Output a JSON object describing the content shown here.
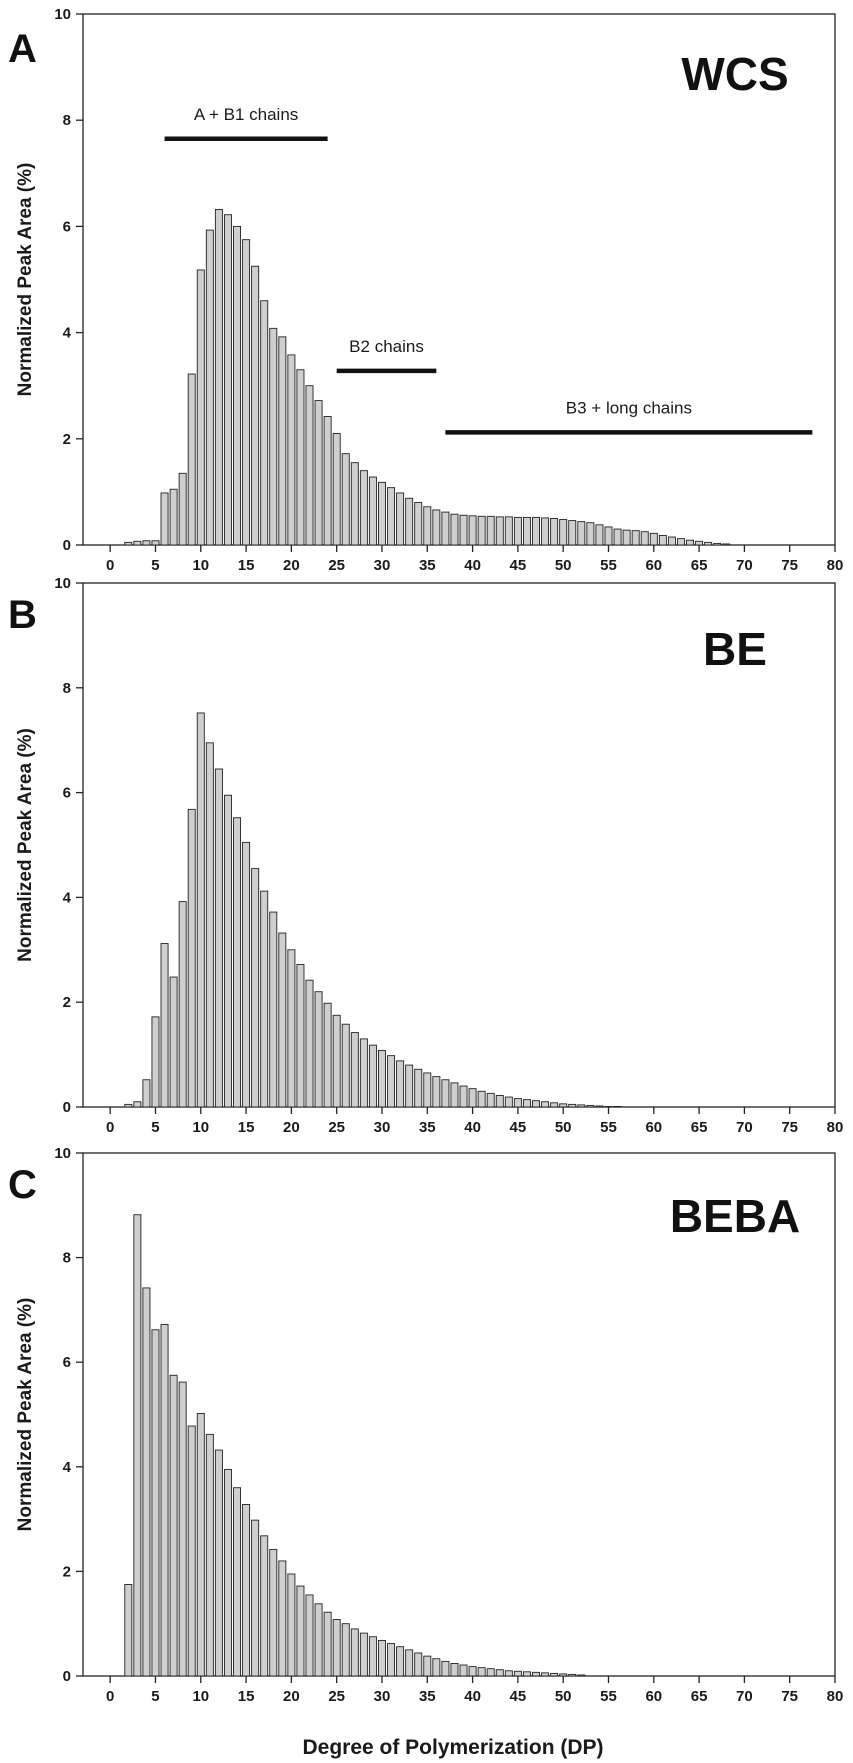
{
  "figure": {
    "xlabel": "Degree of Polymerization (DP)"
  },
  "colors": {
    "bar_fill": "#cfcfcf",
    "bar_stroke": "#222222",
    "axis": "#222222",
    "annotation_line": "#111111"
  },
  "chart_data": [
    {
      "type": "bar",
      "panel_letter": "A",
      "panel_name": "WCS",
      "ylabel": "Normalized Peak Area (%)",
      "xlim": [
        -3,
        80
      ],
      "ylim": [
        0,
        10
      ],
      "xticks": [
        0,
        5,
        10,
        15,
        20,
        25,
        30,
        35,
        40,
        45,
        50,
        55,
        60,
        65,
        70,
        75,
        80
      ],
      "yticks": [
        0,
        2,
        4,
        6,
        8,
        10
      ],
      "x": [
        2,
        3,
        4,
        5,
        6,
        7,
        8,
        9,
        10,
        11,
        12,
        13,
        14,
        15,
        16,
        17,
        18,
        19,
        20,
        21,
        22,
        23,
        24,
        25,
        26,
        27,
        28,
        29,
        30,
        31,
        32,
        33,
        34,
        35,
        36,
        37,
        38,
        39,
        40,
        41,
        42,
        43,
        44,
        45,
        46,
        47,
        48,
        49,
        50,
        51,
        52,
        53,
        54,
        55,
        56,
        57,
        58,
        59,
        60,
        61,
        62,
        63,
        64,
        65,
        66,
        67,
        68
      ],
      "values": [
        0.05,
        0.07,
        0.08,
        0.08,
        0.98,
        1.05,
        1.35,
        3.22,
        5.18,
        5.93,
        6.32,
        6.22,
        6.0,
        5.75,
        5.25,
        4.6,
        4.08,
        3.92,
        3.58,
        3.3,
        3.0,
        2.72,
        2.42,
        2.1,
        1.72,
        1.55,
        1.4,
        1.28,
        1.18,
        1.08,
        0.98,
        0.88,
        0.8,
        0.72,
        0.66,
        0.62,
        0.58,
        0.56,
        0.55,
        0.54,
        0.54,
        0.53,
        0.53,
        0.52,
        0.52,
        0.52,
        0.51,
        0.5,
        0.48,
        0.46,
        0.44,
        0.42,
        0.38,
        0.34,
        0.3,
        0.28,
        0.27,
        0.25,
        0.22,
        0.18,
        0.15,
        0.12,
        0.09,
        0.07,
        0.05,
        0.03,
        0.02
      ],
      "annotations": [
        {
          "label": "A + B1 chains",
          "x_start": 6,
          "x_end": 24,
          "y": 7.65
        },
        {
          "label": "B2 chains",
          "x_start": 25,
          "x_end": 36,
          "y": 3.28
        },
        {
          "label": "B3 + long chains",
          "x_start": 37,
          "x_end": 77.5,
          "y": 2.12
        }
      ]
    },
    {
      "type": "bar",
      "panel_letter": "B",
      "panel_name": "BE",
      "ylabel": "Normalized Peak Area (%)",
      "xlim": [
        -3,
        80
      ],
      "ylim": [
        0,
        10
      ],
      "xticks": [
        0,
        5,
        10,
        15,
        20,
        25,
        30,
        35,
        40,
        45,
        50,
        55,
        60,
        65,
        70,
        75,
        80
      ],
      "yticks": [
        0,
        2,
        4,
        6,
        8,
        10
      ],
      "x": [
        2,
        3,
        4,
        5,
        6,
        7,
        8,
        9,
        10,
        11,
        12,
        13,
        14,
        15,
        16,
        17,
        18,
        19,
        20,
        21,
        22,
        23,
        24,
        25,
        26,
        27,
        28,
        29,
        30,
        31,
        32,
        33,
        34,
        35,
        36,
        37,
        38,
        39,
        40,
        41,
        42,
        43,
        44,
        45,
        46,
        47,
        48,
        49,
        50,
        51,
        52,
        53,
        54,
        55,
        56
      ],
      "values": [
        0.05,
        0.1,
        0.52,
        1.72,
        3.12,
        2.48,
        3.92,
        5.68,
        7.52,
        6.95,
        6.45,
        5.95,
        5.52,
        5.05,
        4.55,
        4.12,
        3.72,
        3.32,
        3.0,
        2.72,
        2.42,
        2.2,
        1.98,
        1.75,
        1.58,
        1.42,
        1.3,
        1.18,
        1.08,
        0.98,
        0.88,
        0.8,
        0.72,
        0.65,
        0.58,
        0.52,
        0.46,
        0.4,
        0.35,
        0.3,
        0.26,
        0.22,
        0.19,
        0.16,
        0.14,
        0.12,
        0.1,
        0.08,
        0.06,
        0.05,
        0.04,
        0.03,
        0.02,
        0.01,
        0.01
      ]
    },
    {
      "type": "bar",
      "panel_letter": "C",
      "panel_name": "BEBA",
      "ylabel": "Normalized Peak Area (%)",
      "xlim": [
        -3,
        80
      ],
      "ylim": [
        0,
        10
      ],
      "xticks": [
        0,
        5,
        10,
        15,
        20,
        25,
        30,
        35,
        40,
        45,
        50,
        55,
        60,
        65,
        70,
        75,
        80
      ],
      "yticks": [
        0,
        2,
        4,
        6,
        8,
        10
      ],
      "x": [
        2,
        3,
        4,
        5,
        6,
        7,
        8,
        9,
        10,
        11,
        12,
        13,
        14,
        15,
        16,
        17,
        18,
        19,
        20,
        21,
        22,
        23,
        24,
        25,
        26,
        27,
        28,
        29,
        30,
        31,
        32,
        33,
        34,
        35,
        36,
        37,
        38,
        39,
        40,
        41,
        42,
        43,
        44,
        45,
        46,
        47,
        48,
        49,
        50,
        51,
        52
      ],
      "values": [
        1.75,
        8.82,
        7.42,
        6.62,
        6.72,
        5.75,
        5.62,
        4.78,
        5.02,
        4.62,
        4.32,
        3.95,
        3.6,
        3.28,
        2.98,
        2.68,
        2.42,
        2.2,
        1.95,
        1.72,
        1.55,
        1.38,
        1.22,
        1.08,
        1.0,
        0.9,
        0.82,
        0.75,
        0.68,
        0.62,
        0.56,
        0.5,
        0.44,
        0.38,
        0.33,
        0.28,
        0.24,
        0.21,
        0.18,
        0.16,
        0.14,
        0.12,
        0.1,
        0.09,
        0.08,
        0.07,
        0.06,
        0.05,
        0.04,
        0.03,
        0.02
      ]
    }
  ]
}
